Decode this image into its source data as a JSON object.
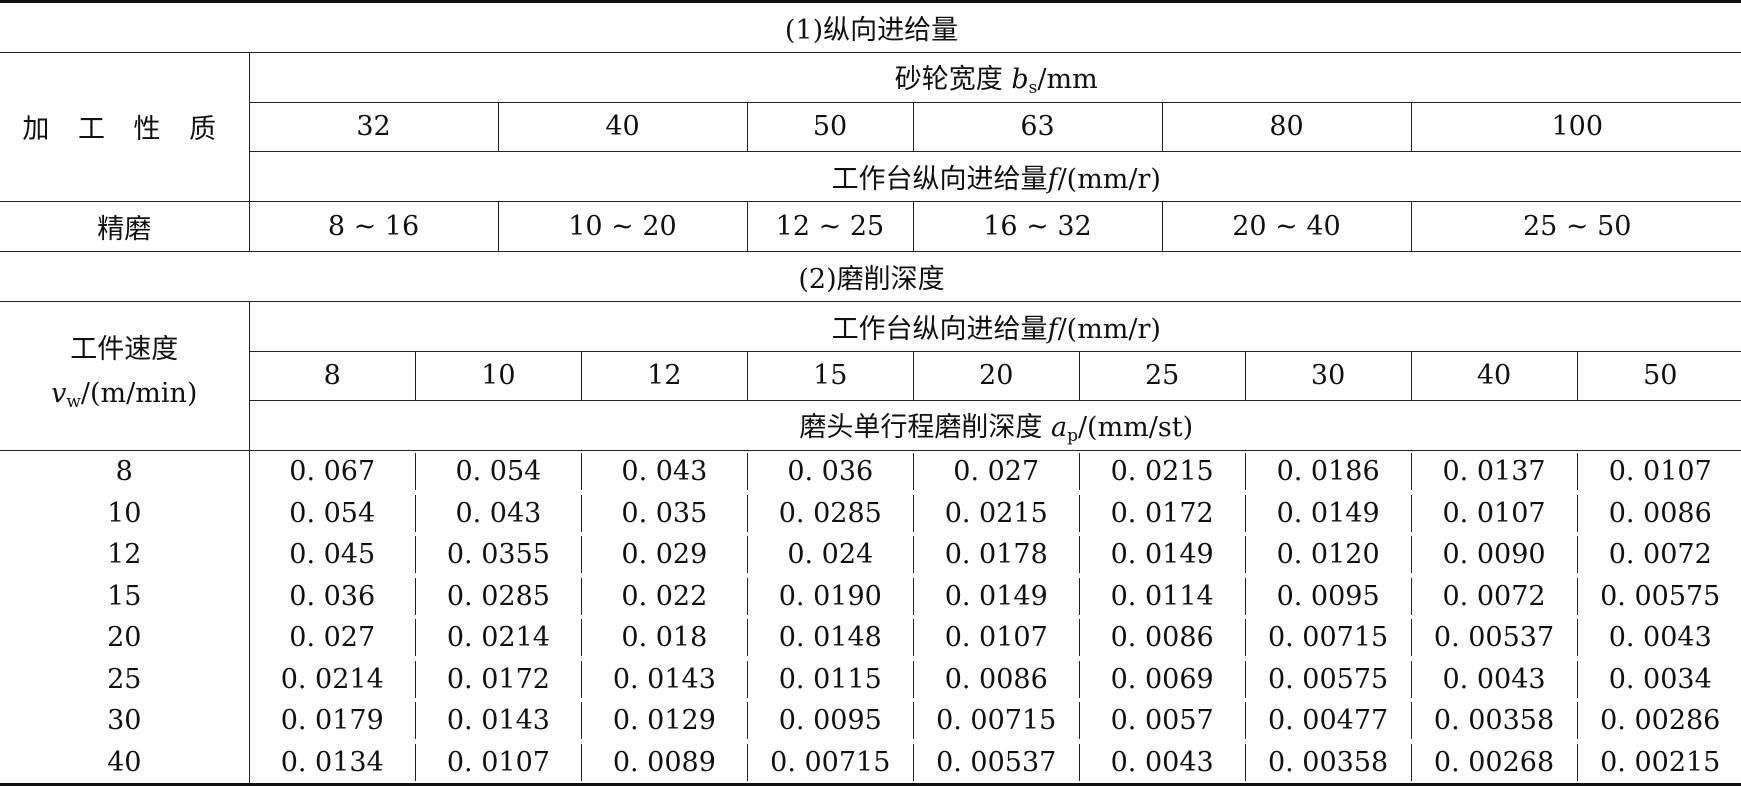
{
  "section1": {
    "title": "(1)纵向进给量",
    "processing_label": "加 工 性 质",
    "wheel_width": {
      "text": "砂轮宽度 ",
      "symbol": "b",
      "sub": "s",
      "unit": "/mm"
    },
    "wheel_widths": [
      "32",
      "40",
      "50",
      "63",
      "80",
      "100"
    ],
    "feed_header": {
      "text": "工作台纵向进给量",
      "symbol": "f",
      "unit": "/(mm/r)"
    },
    "row_label": "精磨",
    "feed_ranges": [
      "8 ~ 16",
      "10 ~ 20",
      "12 ~ 25",
      "16 ~ 32",
      "20 ~ 40",
      "25 ~ 50"
    ]
  },
  "section2": {
    "title": "(2)磨削深度",
    "speed_label": {
      "line1": "工件速度",
      "symbol": "v",
      "sub": "w",
      "unit": "/(m/min)"
    },
    "feed_header": {
      "text": "工作台纵向进给量",
      "symbol": "f",
      "unit": "/(mm/r)"
    },
    "feeds": [
      "8",
      "10",
      "12",
      "15",
      "20",
      "25",
      "30",
      "40",
      "50"
    ],
    "depth_header": {
      "text": "磨头单行程磨削深度 ",
      "symbol": "a",
      "sub": "p",
      "unit": "/(mm/st)"
    },
    "rows": [
      {
        "speed": "8",
        "values": [
          "0. 067",
          "0. 054",
          "0. 043",
          "0. 036",
          "0. 027",
          "0. 0215",
          "0. 0186",
          "0. 0137",
          "0. 0107"
        ]
      },
      {
        "speed": "10",
        "values": [
          "0. 054",
          "0. 043",
          "0. 035",
          "0. 0285",
          "0. 0215",
          "0. 0172",
          "0. 0149",
          "0. 0107",
          "0. 0086"
        ]
      },
      {
        "speed": "12",
        "values": [
          "0. 045",
          "0. 0355",
          "0. 029",
          "0. 024",
          "0. 0178",
          "0. 0149",
          "0. 0120",
          "0. 0090",
          "0. 0072"
        ]
      },
      {
        "speed": "15",
        "values": [
          "0. 036",
          "0. 0285",
          "0. 022",
          "0. 0190",
          "0. 0149",
          "0. 0114",
          "0. 0095",
          "0. 0072",
          "0. 00575"
        ]
      },
      {
        "speed": "20",
        "values": [
          "0. 027",
          "0. 0214",
          "0. 018",
          "0. 0148",
          "0. 0107",
          "0. 0086",
          "0. 00715",
          "0. 00537",
          "0. 0043"
        ]
      },
      {
        "speed": "25",
        "values": [
          "0. 0214",
          "0. 0172",
          "0. 0143",
          "0. 0115",
          "0. 0086",
          "0. 0069",
          "0. 00575",
          "0. 0043",
          "0. 0034"
        ]
      },
      {
        "speed": "30",
        "values": [
          "0. 0179",
          "0. 0143",
          "0. 0129",
          "0. 0095",
          "0. 00715",
          "0. 0057",
          "0. 00477",
          "0. 00358",
          "0. 00286"
        ]
      },
      {
        "speed": "40",
        "values": [
          "0. 0134",
          "0. 0107",
          "0. 0089",
          "0. 00715",
          "0. 00537",
          "0. 0043",
          "0. 00358",
          "0. 00268",
          "0. 00215"
        ]
      }
    ]
  }
}
